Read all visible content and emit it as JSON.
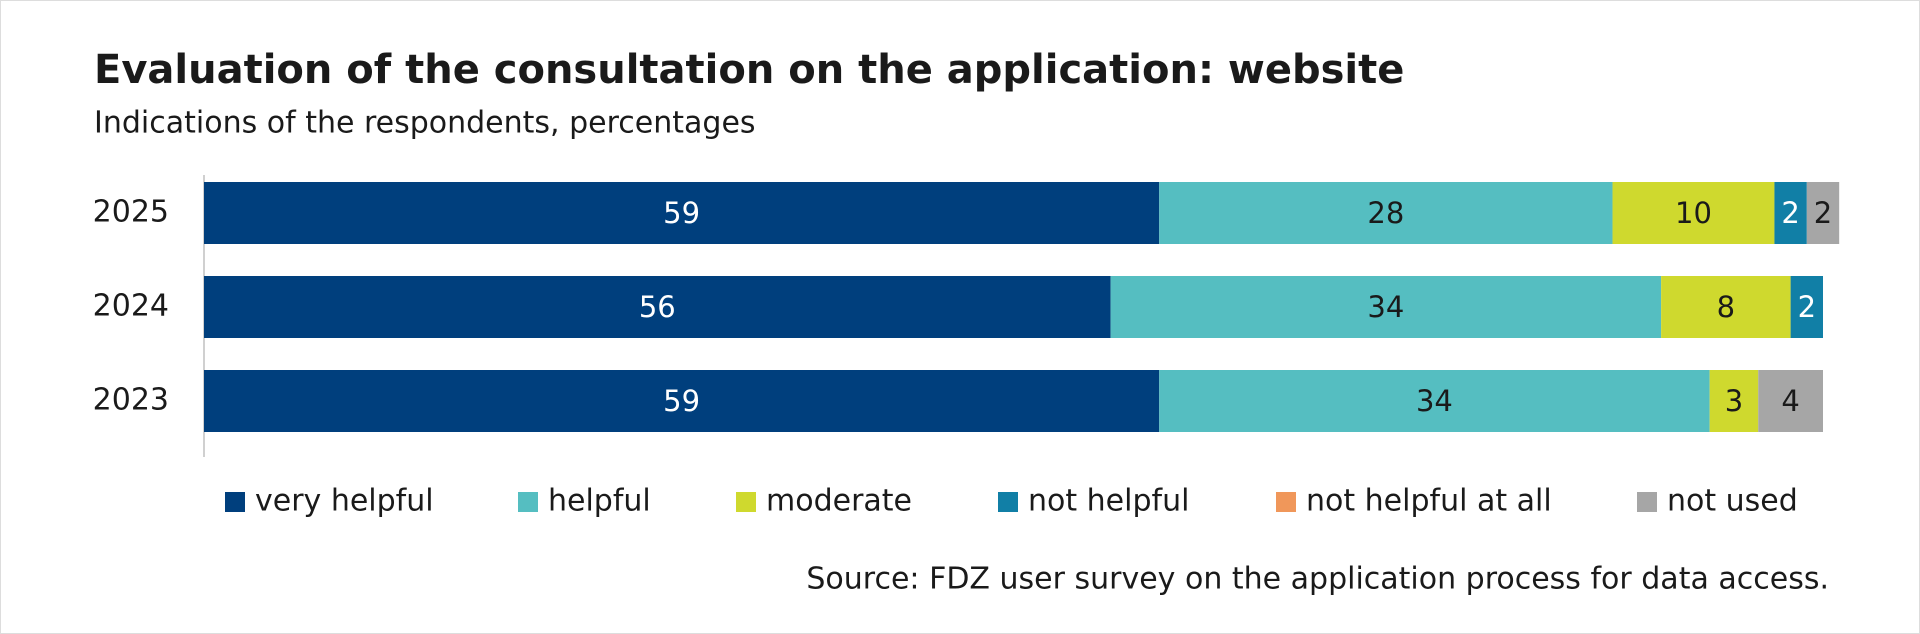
{
  "chart_data": {
    "type": "stacked-bar-horizontal",
    "title": "Evaluation of the consultation on the application: website",
    "subtitle": "Indications of the respondents, percentages",
    "source": "Source: FDZ user survey on the application process for data access.",
    "categories": [
      "2025",
      "2024",
      "2023"
    ],
    "series": [
      {
        "name": "very helpful",
        "color": "#003f7d",
        "values": [
          59,
          56,
          59
        ]
      },
      {
        "name": "helpful",
        "color": "#55bec1",
        "values": [
          28,
          34,
          34
        ]
      },
      {
        "name": "moderate",
        "color": "#cfd92e",
        "values": [
          10,
          8,
          3
        ]
      },
      {
        "name": "not helpful",
        "color": "#117fa6",
        "values": [
          2,
          2,
          0
        ]
      },
      {
        "name": "not helpful at all",
        "color": "#f0975a",
        "values": [
          0,
          0,
          0
        ]
      },
      {
        "name": "not used",
        "color": "#a6a6a6",
        "values": [
          2,
          0,
          4
        ]
      }
    ],
    "xlim": [
      0,
      100
    ],
    "legend": "bottom"
  }
}
